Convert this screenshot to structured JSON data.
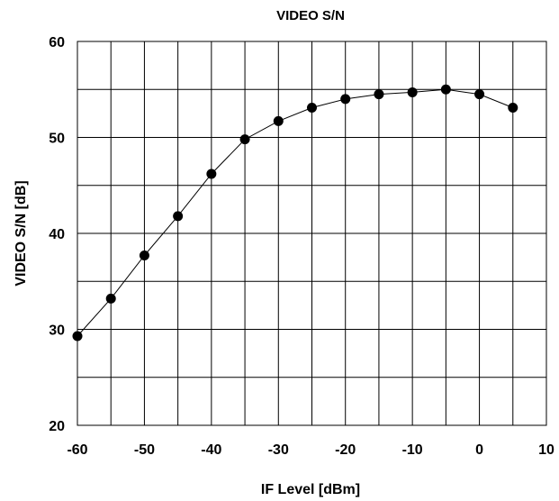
{
  "chart_data": {
    "type": "line",
    "title": "VIDEO S/N",
    "xlabel": "IF Level [dBm]",
    "ylabel": "VIDEO S/N [dB]",
    "xlim": [
      -60,
      10
    ],
    "ylim": [
      20,
      60
    ],
    "x_ticks": [
      -60,
      -50,
      -40,
      -30,
      -20,
      -10,
      0,
      10
    ],
    "y_ticks": [
      20,
      30,
      40,
      50,
      60
    ],
    "x_tick_labels": [
      "-60",
      "-50",
      "-40",
      "-30",
      "-20",
      "-10",
      "0",
      "10"
    ],
    "y_tick_labels": [
      "20",
      "30",
      "40",
      "50",
      "60"
    ],
    "grid": true,
    "x_grid_step": 5,
    "y_grid_step": 5,
    "series": [
      {
        "x": [
          -60,
          -55,
          -50,
          -45,
          -40,
          -35,
          -30,
          -25,
          -20,
          -15,
          -10,
          -5,
          0,
          5
        ],
        "y": [
          29.3,
          33.2,
          37.7,
          41.8,
          46.2,
          49.8,
          51.7,
          53.1,
          54.0,
          54.5,
          54.7,
          55.0,
          54.5,
          53.1
        ],
        "color": "#000000",
        "marker": "filled-circle"
      }
    ]
  }
}
